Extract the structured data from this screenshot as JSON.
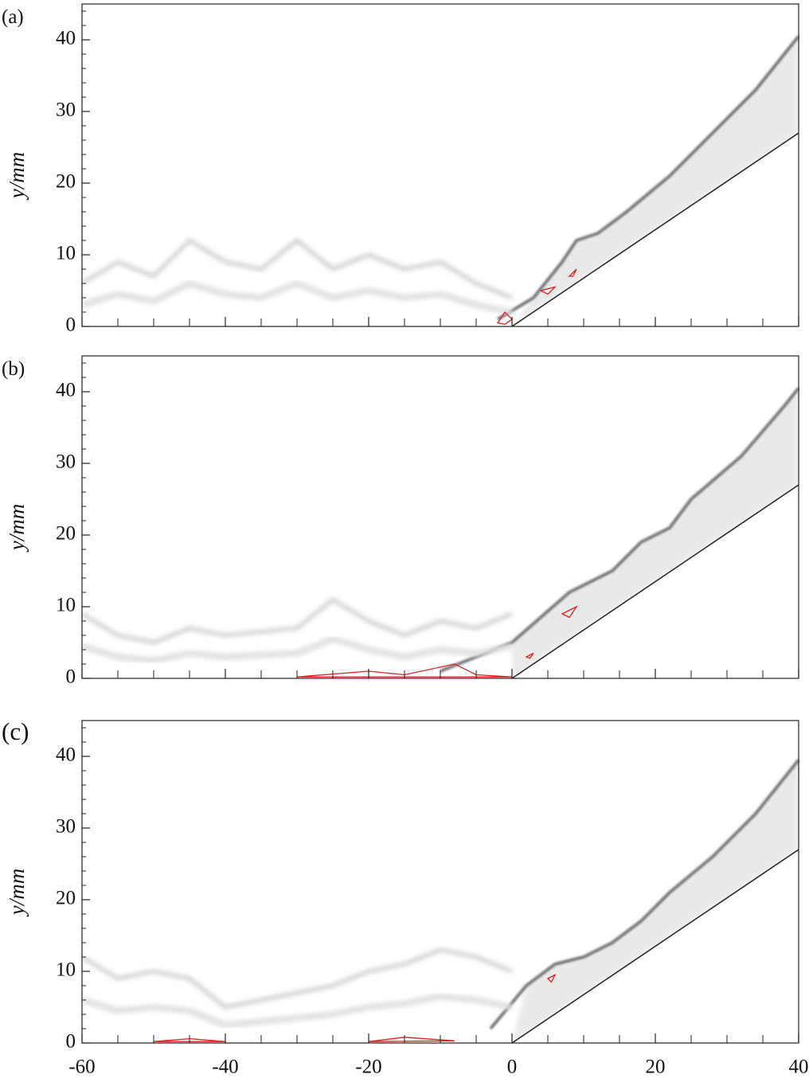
{
  "chart_data": [
    {
      "type": "schlieren",
      "panel_label": "(a)",
      "ylabel": "y/mm",
      "xlim": [
        -60,
        40
      ],
      "xticks": [
        -60,
        -40,
        -20,
        0,
        20,
        40
      ],
      "xminorticks": [
        -55,
        -50,
        -45,
        -35,
        -30,
        -25,
        -15,
        -10,
        -5,
        5,
        10,
        15,
        25,
        30,
        35
      ],
      "ylim": [
        0,
        45
      ],
      "yticks": [
        0,
        10,
        20,
        30,
        40
      ],
      "yminorticks": [
        2,
        4,
        6,
        8,
        12,
        14,
        16,
        18,
        22,
        24,
        26,
        28,
        32,
        34,
        36,
        38,
        42,
        44
      ]
    },
    {
      "type": "schlieren",
      "panel_label": "(b)",
      "ylabel": "y/mm",
      "xlim": [
        -60,
        40
      ],
      "xticks": [
        -60,
        -40,
        -20,
        0,
        20,
        40
      ],
      "xminorticks": [
        -55,
        -50,
        -45,
        -35,
        -30,
        -25,
        -15,
        -10,
        -5,
        5,
        10,
        15,
        25,
        30,
        35
      ],
      "ylim": [
        0,
        45
      ],
      "yticks": [
        0,
        10,
        20,
        30,
        40
      ],
      "yminorticks": [
        2,
        4,
        6,
        8,
        12,
        14,
        16,
        18,
        22,
        24,
        26,
        28,
        32,
        34,
        36,
        38,
        42,
        44
      ]
    },
    {
      "type": "schlieren",
      "panel_label": "(c)",
      "ylabel": "y/mm",
      "xlim": [
        -60,
        40
      ],
      "xticks": [
        -60,
        -40,
        -20,
        0,
        20,
        40
      ],
      "xminorticks": [
        -55,
        -50,
        -45,
        -35,
        -30,
        -25,
        -15,
        -10,
        -5,
        5,
        10,
        15,
        25,
        30,
        35
      ],
      "ylim": [
        0,
        45
      ],
      "yticks": [
        0,
        10,
        20,
        30,
        40
      ],
      "yminorticks": [
        2,
        4,
        6,
        8,
        12,
        14,
        16,
        18,
        22,
        24,
        26,
        28,
        32,
        34,
        36,
        38,
        42,
        44
      ]
    }
  ]
}
